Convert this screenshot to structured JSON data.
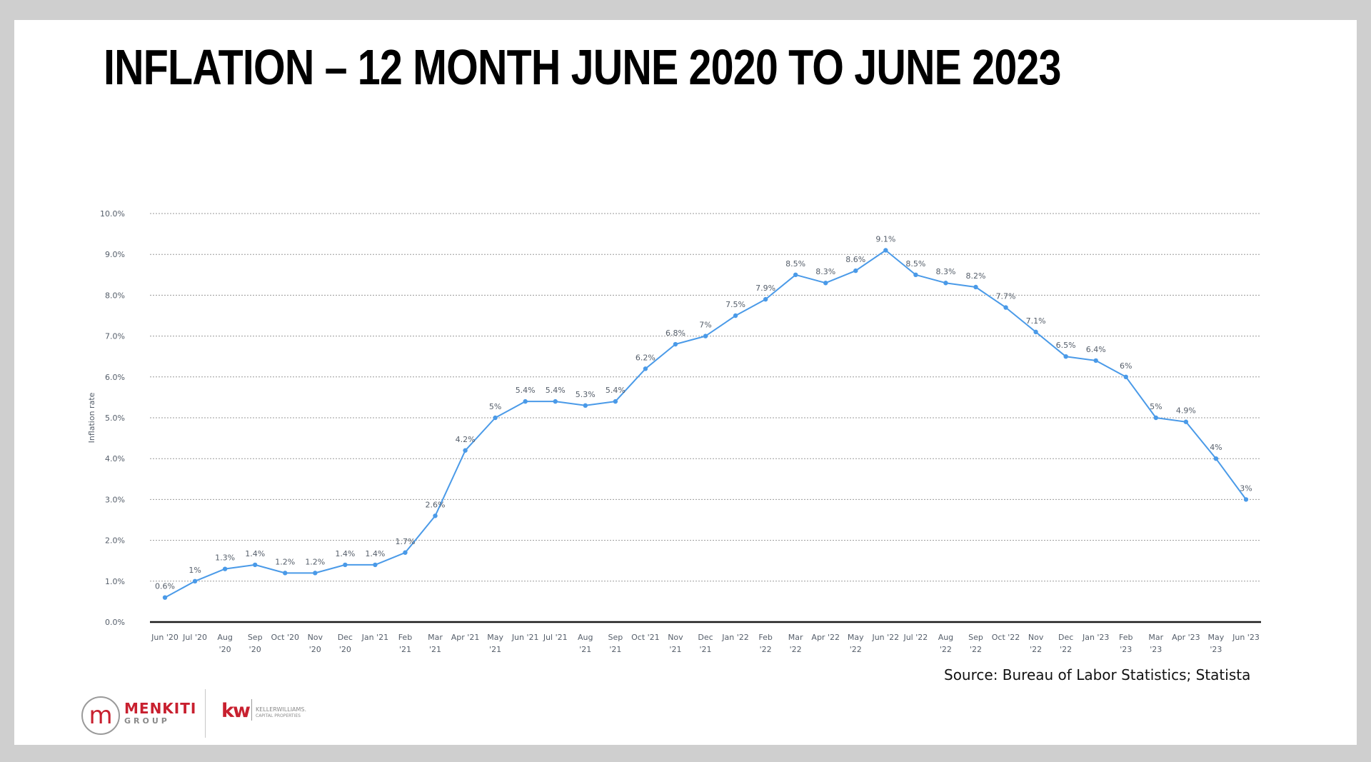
{
  "slide": {
    "title": "INFLATION – 12 MONTH JUNE 2020 TO JUNE 2023",
    "source": "Source: Bureau of Labor Statistics; Statista"
  },
  "logos": {
    "menkiti_mark": "m",
    "menkiti_name": "MENKITI",
    "menkiti_sub": "GROUP",
    "kw_mark": "kw",
    "kw_name": "KELLERWILLIAMS.",
    "kw_sub": "CAPITAL PROPERTIES"
  },
  "colors": {
    "line": "#4a9ae8",
    "grid": "#9a9a9a",
    "axis": "#1a1a1a",
    "tick_text": "#555e6a",
    "brand_red": "#c8202f"
  },
  "chart_data": {
    "type": "line",
    "title": "",
    "xlabel": "",
    "ylabel": "Inflation rate",
    "ylim": [
      0,
      10
    ],
    "y_ticks": [
      "0.0%",
      "1.0%",
      "2.0%",
      "3.0%",
      "4.0%",
      "5.0%",
      "6.0%",
      "7.0%",
      "8.0%",
      "9.0%",
      "10.0%"
    ],
    "grid": true,
    "legend": "none",
    "categories": [
      [
        "Jun '20"
      ],
      [
        "Jul '20"
      ],
      [
        "Aug",
        "'20"
      ],
      [
        "Sep",
        "'20"
      ],
      [
        "Oct '20"
      ],
      [
        "Nov",
        "'20"
      ],
      [
        "Dec",
        "'20"
      ],
      [
        "Jan '21"
      ],
      [
        "Feb",
        "'21"
      ],
      [
        "Mar",
        "'21"
      ],
      [
        "Apr '21"
      ],
      [
        "May",
        "'21"
      ],
      [
        "Jun '21"
      ],
      [
        "Jul '21"
      ],
      [
        "Aug",
        "'21"
      ],
      [
        "Sep",
        "'21"
      ],
      [
        "Oct '21"
      ],
      [
        "Nov",
        "'21"
      ],
      [
        "Dec",
        "'21"
      ],
      [
        "Jan '22"
      ],
      [
        "Feb",
        "'22"
      ],
      [
        "Mar",
        "'22"
      ],
      [
        "Apr '22"
      ],
      [
        "May",
        "'22"
      ],
      [
        "Jun '22"
      ],
      [
        "Jul '22"
      ],
      [
        "Aug",
        "'22"
      ],
      [
        "Sep",
        "'22"
      ],
      [
        "Oct '22"
      ],
      [
        "Nov",
        "'22"
      ],
      [
        "Dec",
        "'22"
      ],
      [
        "Jan '23"
      ],
      [
        "Feb",
        "'23"
      ],
      [
        "Mar",
        "'23"
      ],
      [
        "Apr '23"
      ],
      [
        "May",
        "'23"
      ],
      [
        "Jun '23"
      ]
    ],
    "values": [
      0.6,
      1,
      1.3,
      1.4,
      1.2,
      1.2,
      1.4,
      1.4,
      1.7,
      2.6,
      4.2,
      5,
      5.4,
      5.4,
      5.3,
      5.4,
      6.2,
      6.8,
      7,
      7.5,
      7.9,
      8.5,
      8.3,
      8.6,
      9.1,
      8.5,
      8.3,
      8.2,
      7.7,
      7.1,
      6.5,
      6.4,
      6,
      5,
      4.9,
      4,
      3
    ],
    "data_labels": [
      "0.6%",
      "1%",
      "1.3%",
      "1.4%",
      "1.2%",
      "1.2%",
      "1.4%",
      "1.4%",
      "1.7%",
      "2.6%",
      "4.2%",
      "5%",
      "5.4%",
      "5.4%",
      "5.3%",
      "5.4%",
      "6.2%",
      "6.8%",
      "7%",
      "7.5%",
      "7.9%",
      "8.5%",
      "8.3%",
      "8.6%",
      "9.1%",
      "8.5%",
      "8.3%",
      "8.2%",
      "7.7%",
      "7.1%",
      "6.5%",
      "6.4%",
      "6%",
      "5%",
      "4.9%",
      "4%",
      "3%"
    ]
  }
}
